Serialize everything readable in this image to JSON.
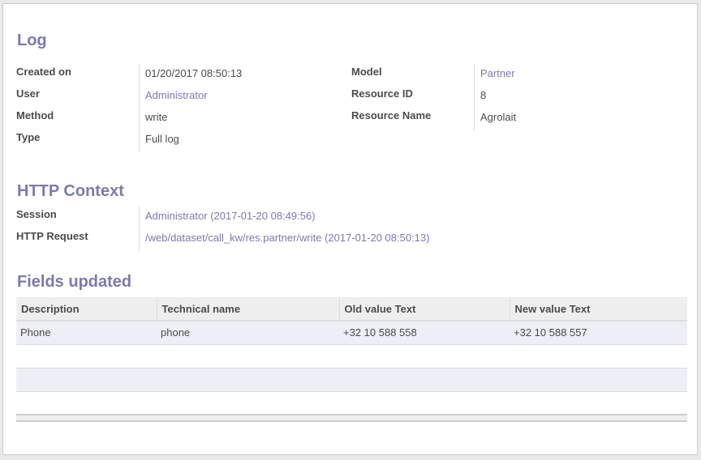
{
  "log": {
    "title": "Log",
    "left": [
      {
        "label": "Created on",
        "value": "01/20/2017 08:50:13"
      },
      {
        "label": "User",
        "value": "Administrator"
      },
      {
        "label": "Method",
        "value": "write"
      },
      {
        "label": "Type",
        "value": "Full log"
      }
    ],
    "right": [
      {
        "label": "Model",
        "value": "Partner"
      },
      {
        "label": "Resource ID",
        "value": "8"
      },
      {
        "label": "Resource Name",
        "value": "Agrolait"
      }
    ]
  },
  "http": {
    "title": "HTTP Context",
    "rows": [
      {
        "label": "Session",
        "value": "Administrator (2017-01-20 08:49:56)"
      },
      {
        "label": "HTTP Request",
        "value": "/web/dataset/call_kw/res.partner/write (2017-01-20 08:50:13)"
      }
    ]
  },
  "fields": {
    "title": "Fields updated",
    "columns": [
      "Description",
      "Technical name",
      "Old value Text",
      "New value Text"
    ],
    "rows": [
      [
        "Phone",
        "phone",
        "+32 10 588 558",
        "+32 10 588 557"
      ]
    ]
  },
  "colors": {
    "accent": "#7c7bad"
  }
}
